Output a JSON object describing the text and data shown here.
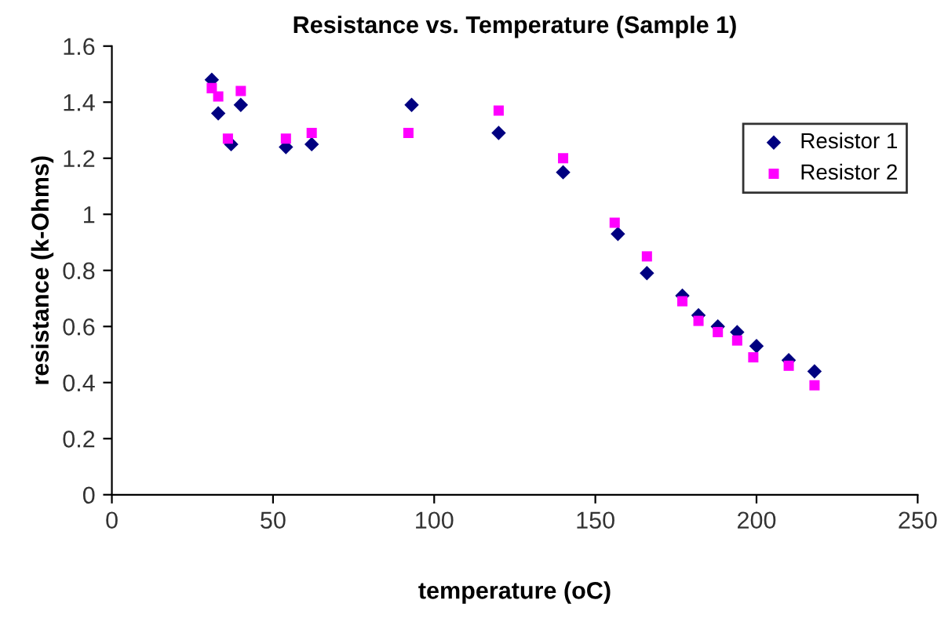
{
  "chart_data": {
    "type": "scatter",
    "title": "Resistance vs. Temperature (Sample 1)",
    "xlabel": "temperature (oC)",
    "ylabel": "resistance (k-Ohms)",
    "xlim": [
      0,
      250
    ],
    "xticks": [
      0,
      50,
      100,
      150,
      200,
      250
    ],
    "ylim": [
      0,
      1.6
    ],
    "yticks": [
      0,
      0.2,
      0.4,
      0.6,
      0.8,
      1,
      1.2,
      1.4,
      1.6
    ],
    "grid": false,
    "legend": "right",
    "series": [
      {
        "name": "Resistor 1",
        "color": "#000080",
        "marker": "diamond",
        "x": [
          31,
          33,
          37,
          40,
          54,
          62,
          93,
          120,
          140,
          157,
          166,
          177,
          182,
          188,
          194,
          200,
          210,
          218
        ],
        "values": [
          1.48,
          1.36,
          1.25,
          1.39,
          1.24,
          1.25,
          1.39,
          1.29,
          1.15,
          0.93,
          0.79,
          0.71,
          0.64,
          0.6,
          0.58,
          0.53,
          0.48,
          0.44
        ]
      },
      {
        "name": "Resistor 2",
        "color": "#ff00ff",
        "marker": "square",
        "x": [
          31,
          33,
          36,
          40,
          54,
          62,
          92,
          120,
          140,
          156,
          166,
          177,
          182,
          188,
          194,
          199,
          210,
          218
        ],
        "values": [
          1.45,
          1.42,
          1.27,
          1.44,
          1.27,
          1.29,
          1.29,
          1.37,
          1.2,
          0.97,
          0.85,
          0.69,
          0.62,
          0.58,
          0.55,
          0.49,
          0.46,
          0.39
        ]
      }
    ]
  }
}
